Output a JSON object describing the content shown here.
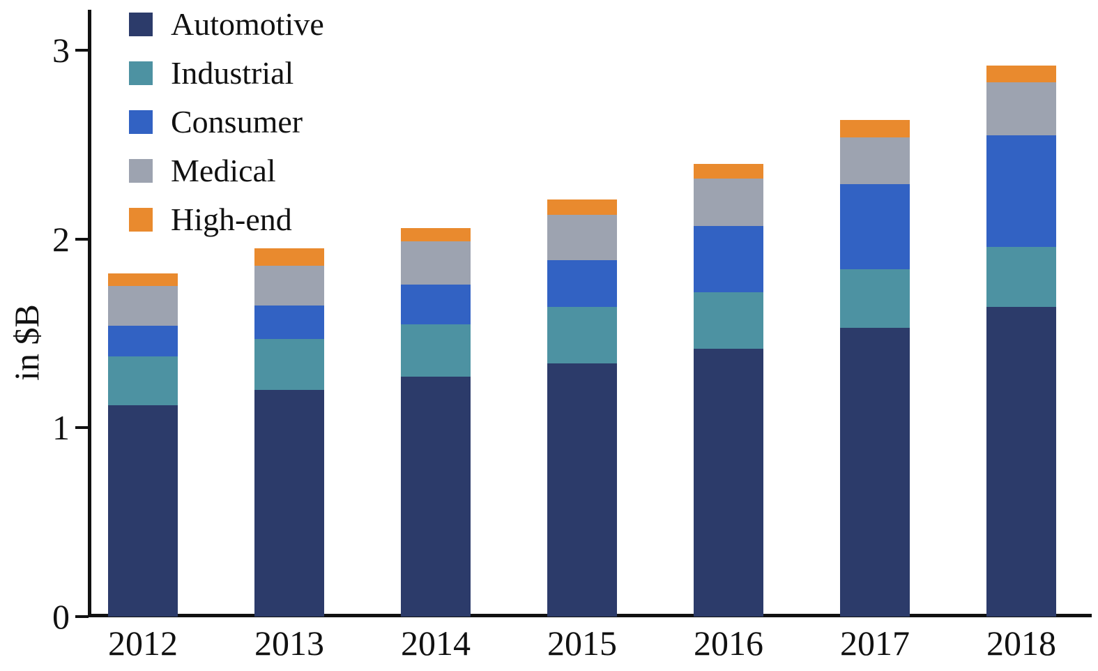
{
  "chart_data": {
    "type": "bar",
    "stacked": true,
    "title": "",
    "xlabel": "",
    "ylabel": "in $B",
    "ylim": [
      0,
      3.2
    ],
    "yticks": [
      0,
      1,
      2,
      3
    ],
    "ytick_labels": [
      "0",
      "1",
      "2",
      "3"
    ],
    "categories": [
      "2012",
      "2013",
      "2014",
      "2015",
      "2016",
      "2017",
      "2018"
    ],
    "series": [
      {
        "name": "Automotive",
        "color": "#2c3b6a",
        "values": [
          1.12,
          1.2,
          1.27,
          1.34,
          1.42,
          1.53,
          1.64
        ]
      },
      {
        "name": "Industrial",
        "color": "#4d92a2",
        "values": [
          0.26,
          0.27,
          0.28,
          0.3,
          0.3,
          0.31,
          0.32
        ]
      },
      {
        "name": "Consumer",
        "color": "#3262c3",
        "values": [
          0.16,
          0.18,
          0.21,
          0.25,
          0.35,
          0.45,
          0.59
        ]
      },
      {
        "name": "Medical",
        "color": "#9da3b0",
        "values": [
          0.21,
          0.21,
          0.23,
          0.24,
          0.25,
          0.25,
          0.28
        ]
      },
      {
        "name": "High-end",
        "color": "#e98a2e",
        "values": [
          0.07,
          0.09,
          0.07,
          0.08,
          0.08,
          0.09,
          0.09
        ]
      }
    ],
    "legend_position": "upper-left",
    "grid": false,
    "axis_color": "#111111"
  }
}
